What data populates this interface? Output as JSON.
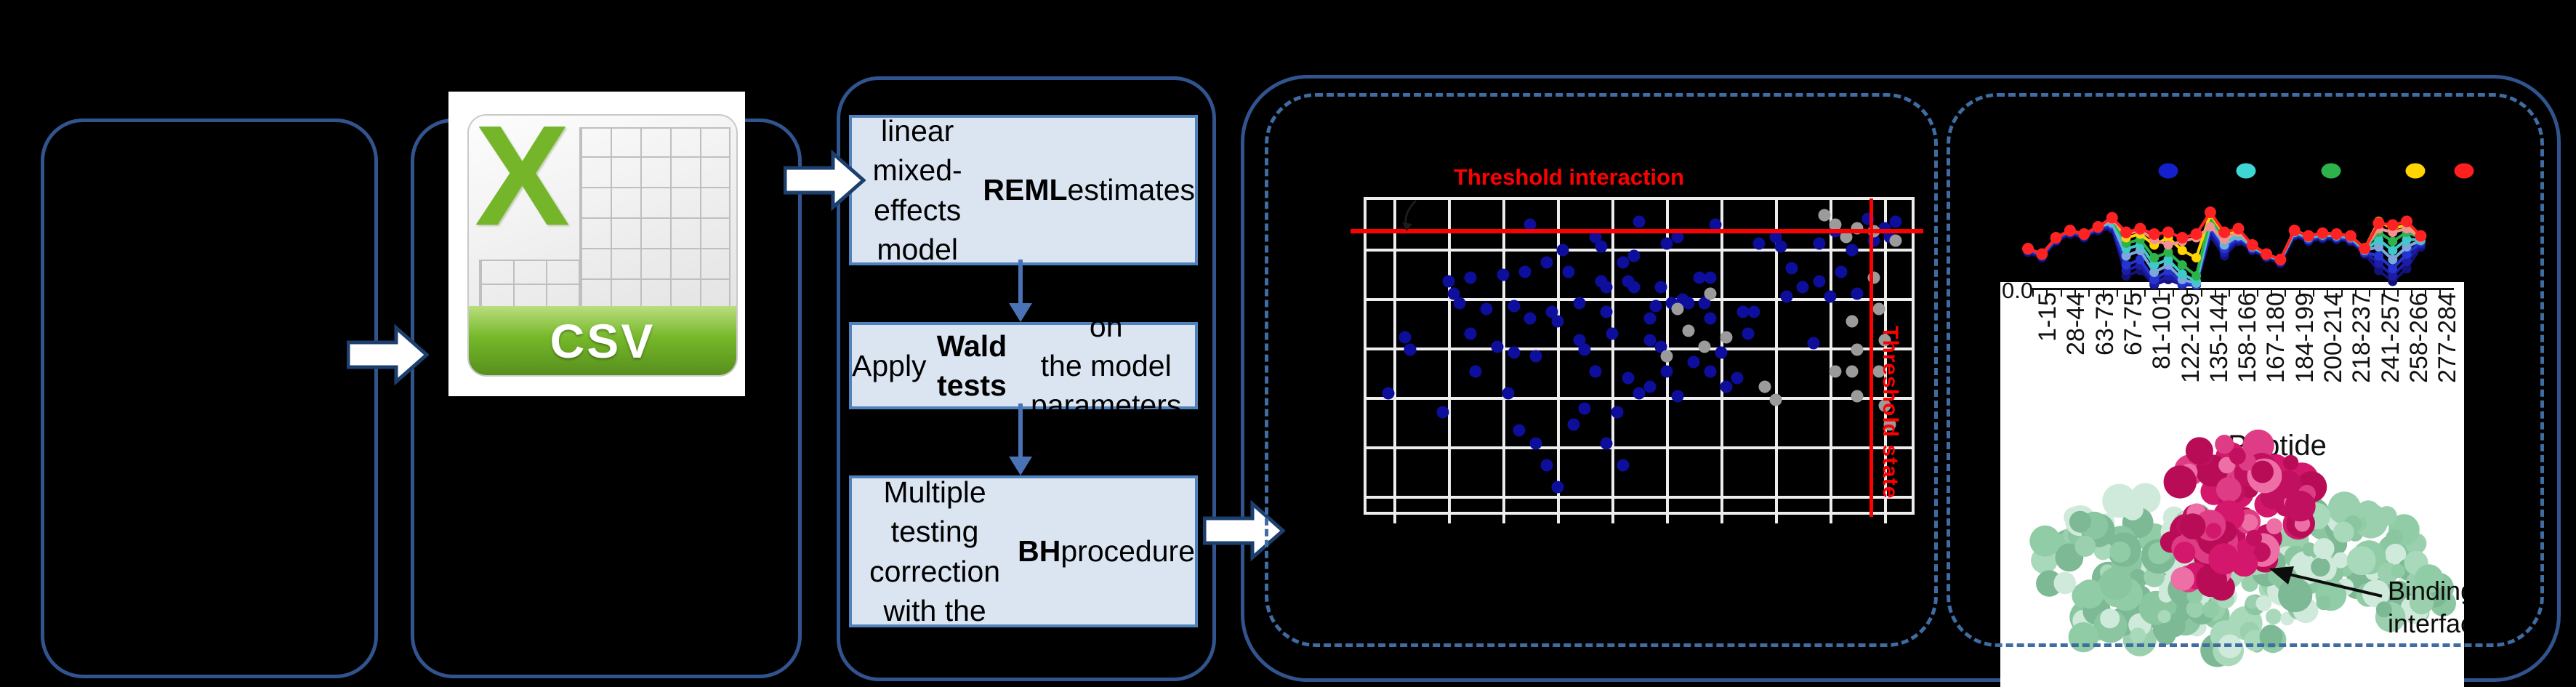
{
  "figure": {
    "csv": {
      "x_letter": "X",
      "banner_label": "CSV"
    },
    "steps": [
      {
        "segments": [
          {
            "text": "Fit a linear mixed-\neffects model with\n",
            "bold": false
          },
          {
            "text": "REML",
            "bold": true
          },
          {
            "text": " estimates",
            "bold": false
          }
        ]
      },
      {
        "segments": [
          {
            "text": "Apply ",
            "bold": false
          },
          {
            "text": "Wald tests",
            "bold": true
          },
          {
            "text": " on\nthe model parameters",
            "bold": false
          }
        ]
      },
      {
        "segments": [
          {
            "text": "Multiple testing\ncorrection\nwith the ",
            "bold": false
          },
          {
            "text": "BH",
            "bold": true
          },
          {
            "text": " procedure",
            "bold": false
          }
        ]
      }
    ]
  },
  "chart_data": [
    {
      "type": "scatter",
      "title": "Threshold interaction",
      "y2label": "Threshold state",
      "grid_on": true,
      "threshold_interaction_frac": 0.1,
      "threshold_state_frac": 0.925,
      "grid_x": [
        0.052,
        0.152,
        0.252,
        0.352,
        0.452,
        0.552,
        0.652,
        0.752,
        0.852,
        0.952
      ],
      "grid_y": [
        0.161,
        0.319,
        0.478,
        0.636,
        0.795,
        0.953
      ],
      "series": [
        {
          "name": "blue_points",
          "color": "#0e0e9d",
          "points": [
            [
              0.3,
              0.08
            ],
            [
              0.42,
              0.12
            ],
            [
              0.5,
              0.07
            ],
            [
              0.57,
              0.12
            ],
            [
              0.64,
              0.08
            ],
            [
              0.72,
              0.14
            ],
            [
              0.75,
              0.12
            ],
            [
              0.15,
              0.26
            ],
            [
              0.16,
              0.3
            ],
            [
              0.17,
              0.33
            ],
            [
              0.19,
              0.25
            ],
            [
              0.19,
              0.43
            ],
            [
              0.2,
              0.55
            ],
            [
              0.25,
              0.24
            ],
            [
              0.26,
              0.62
            ],
            [
              0.27,
              0.34
            ],
            [
              0.27,
              0.49
            ],
            [
              0.28,
              0.74
            ],
            [
              0.29,
              0.23
            ],
            [
              0.3,
              0.38
            ],
            [
              0.31,
              0.5
            ],
            [
              0.31,
              0.78
            ],
            [
              0.33,
              0.2
            ],
            [
              0.33,
              0.85
            ],
            [
              0.34,
              0.36
            ],
            [
              0.35,
              0.39
            ],
            [
              0.35,
              0.92
            ],
            [
              0.36,
              0.16
            ],
            [
              0.37,
              0.23
            ],
            [
              0.38,
              0.72
            ],
            [
              0.39,
              0.33
            ],
            [
              0.39,
              0.45
            ],
            [
              0.4,
              0.48
            ],
            [
              0.4,
              0.67
            ],
            [
              0.42,
              0.55
            ],
            [
              0.43,
              0.15
            ],
            [
              0.43,
              0.26
            ],
            [
              0.44,
              0.28
            ],
            [
              0.44,
              0.36
            ],
            [
              0.44,
              0.78
            ],
            [
              0.45,
              0.43
            ],
            [
              0.46,
              0.68
            ],
            [
              0.47,
              0.2
            ],
            [
              0.47,
              0.85
            ],
            [
              0.48,
              0.26
            ],
            [
              0.48,
              0.57
            ],
            [
              0.49,
              0.18
            ],
            [
              0.49,
              0.28
            ],
            [
              0.5,
              0.62
            ],
            [
              0.52,
              0.38
            ],
            [
              0.52,
              0.45
            ],
            [
              0.52,
              0.6
            ],
            [
              0.53,
              0.34
            ],
            [
              0.54,
              0.28
            ],
            [
              0.54,
              0.47
            ],
            [
              0.55,
              0.14
            ],
            [
              0.55,
              0.55
            ],
            [
              0.56,
              0.33
            ],
            [
              0.57,
              0.63
            ],
            [
              0.58,
              0.32
            ],
            [
              0.59,
              0.33
            ],
            [
              0.6,
              0.52
            ],
            [
              0.61,
              0.25
            ],
            [
              0.62,
              0.33
            ],
            [
              0.63,
              0.25
            ],
            [
              0.63,
              0.38
            ],
            [
              0.63,
              0.55
            ],
            [
              0.65,
              0.49
            ],
            [
              0.66,
              0.6
            ],
            [
              0.68,
              0.57
            ],
            [
              0.69,
              0.36
            ],
            [
              0.7,
              0.43
            ],
            [
              0.71,
              0.36
            ],
            [
              0.76,
              0.15
            ],
            [
              0.77,
              0.31
            ],
            [
              0.78,
              0.22
            ],
            [
              0.8,
              0.28
            ],
            [
              0.82,
              0.46
            ],
            [
              0.83,
              0.14
            ],
            [
              0.83,
              0.26
            ],
            [
              0.85,
              0.31
            ],
            [
              0.86,
              0.1
            ],
            [
              0.87,
              0.23
            ],
            [
              0.89,
              0.16
            ],
            [
              0.9,
              0.3
            ],
            [
              0.92,
              0.06
            ],
            [
              0.93,
              0.13
            ],
            [
              0.95,
              0.09
            ],
            [
              0.96,
              0.12
            ],
            [
              0.97,
              0.07
            ],
            [
              0.04,
              0.62
            ],
            [
              0.07,
              0.44
            ],
            [
              0.08,
              0.48
            ],
            [
              0.14,
              0.68
            ],
            [
              0.22,
              0.35
            ],
            [
              0.24,
              0.47
            ]
          ]
        },
        {
          "name": "gray_points",
          "color": "#9b9b9b",
          "points": [
            [
              0.84,
              0.05
            ],
            [
              0.86,
              0.08
            ],
            [
              0.88,
              0.12
            ],
            [
              0.9,
              0.09
            ],
            [
              0.93,
              0.1
            ],
            [
              0.97,
              0.13
            ],
            [
              0.57,
              0.35
            ],
            [
              0.59,
              0.42
            ],
            [
              0.62,
              0.47
            ],
            [
              0.66,
              0.44
            ],
            [
              0.55,
              0.5
            ],
            [
              0.63,
              0.3
            ],
            [
              0.73,
              0.6
            ],
            [
              0.75,
              0.64
            ],
            [
              0.86,
              0.55
            ],
            [
              0.89,
              0.39
            ],
            [
              0.9,
              0.48
            ],
            [
              0.89,
              0.55
            ],
            [
              0.9,
              0.63
            ],
            [
              0.93,
              0.25
            ],
            [
              0.94,
              0.35
            ],
            [
              0.95,
              0.45
            ],
            [
              0.94,
              0.55
            ],
            [
              0.95,
              0.66
            ],
            [
              0.96,
              0.72
            ]
          ]
        }
      ]
    },
    {
      "type": "line",
      "xlabel": "Peptide",
      "y_tick_label": "0.0",
      "x_labels": [
        "1-15",
        "28-44",
        "63-73",
        "67-75",
        "81-101",
        "122-129",
        "135-144",
        "158-166",
        "167-180",
        "184-199",
        "200-214",
        "218-237",
        "241-257",
        "258-266",
        "277-284"
      ],
      "legend_position": "top",
      "legend_marker_colors": [
        "#1420cc",
        "#3fd6d6",
        "#2db34c",
        "#ffd400",
        "#ff1f1f"
      ],
      "legend_x_centers": [
        2983,
        3090,
        3207,
        3323,
        3390
      ],
      "series": [
        {
          "name": "navy-dark",
          "color": "#12127a",
          "values": [
            0.36,
            0.3,
            0.48,
            0.56,
            0.52,
            0.6,
            0.62,
            0.1,
            0.16,
            0.0,
            0.06,
            0.0,
            0.0,
            0.54,
            0.32,
            0.48,
            0.38,
            0.3,
            0.24,
            0.54,
            0.48,
            0.51,
            0.5,
            0.48,
            0.34,
            0.16,
            0.04,
            0.18,
            0.42
          ]
        },
        {
          "name": "navy",
          "color": "#1c1ca6",
          "values": [
            0.38,
            0.32,
            0.5,
            0.58,
            0.54,
            0.62,
            0.64,
            0.16,
            0.22,
            0.02,
            0.1,
            0.0,
            0.0,
            0.58,
            0.36,
            0.5,
            0.4,
            0.32,
            0.26,
            0.56,
            0.5,
            0.53,
            0.52,
            0.5,
            0.36,
            0.24,
            0.1,
            0.26,
            0.45
          ]
        },
        {
          "name": "blue",
          "color": "#2334d0",
          "values": [
            0.38,
            0.32,
            0.5,
            0.58,
            0.54,
            0.62,
            0.66,
            0.22,
            0.28,
            0.06,
            0.16,
            0.02,
            0.0,
            0.62,
            0.4,
            0.52,
            0.4,
            0.32,
            0.26,
            0.56,
            0.5,
            0.53,
            0.52,
            0.5,
            0.36,
            0.32,
            0.18,
            0.34,
            0.47
          ]
        },
        {
          "name": "steel-blue",
          "color": "#7ba7dc",
          "values": [
            0.4,
            0.34,
            0.52,
            0.6,
            0.56,
            0.64,
            0.68,
            0.32,
            0.38,
            0.14,
            0.22,
            0.06,
            0.02,
            0.66,
            0.44,
            0.54,
            0.42,
            0.33,
            0.27,
            0.58,
            0.52,
            0.55,
            0.54,
            0.52,
            0.38,
            0.42,
            0.28,
            0.42,
            0.49
          ]
        },
        {
          "name": "teal",
          "color": "#3fc9c9",
          "values": [
            0.4,
            0.34,
            0.52,
            0.6,
            0.56,
            0.64,
            0.7,
            0.4,
            0.44,
            0.22,
            0.28,
            0.12,
            0.04,
            0.7,
            0.48,
            0.56,
            0.42,
            0.33,
            0.27,
            0.58,
            0.52,
            0.55,
            0.54,
            0.52,
            0.38,
            0.5,
            0.38,
            0.5,
            0.5
          ]
        },
        {
          "name": "green",
          "color": "#2cb44b",
          "values": [
            0.4,
            0.34,
            0.52,
            0.6,
            0.56,
            0.64,
            0.72,
            0.46,
            0.5,
            0.3,
            0.36,
            0.22,
            0.1,
            0.74,
            0.52,
            0.58,
            0.44,
            0.34,
            0.28,
            0.6,
            0.54,
            0.57,
            0.56,
            0.54,
            0.4,
            0.58,
            0.48,
            0.58,
            0.52
          ]
        },
        {
          "name": "yellow",
          "color": "#ffd400",
          "values": [
            0.4,
            0.34,
            0.52,
            0.6,
            0.56,
            0.64,
            0.74,
            0.52,
            0.56,
            0.44,
            0.52,
            0.38,
            0.3,
            0.78,
            0.56,
            0.6,
            0.44,
            0.34,
            0.28,
            0.6,
            0.54,
            0.57,
            0.56,
            0.54,
            0.4,
            0.7,
            0.62,
            0.66,
            0.53
          ]
        },
        {
          "name": "salmon",
          "color": "#f29292",
          "values": [
            0.4,
            0.34,
            0.52,
            0.6,
            0.56,
            0.64,
            0.72,
            0.56,
            0.6,
            0.5,
            0.44,
            0.48,
            0.52,
            0.64,
            0.5,
            0.58,
            0.44,
            0.34,
            0.28,
            0.6,
            0.54,
            0.57,
            0.56,
            0.54,
            0.4,
            0.62,
            0.58,
            0.62,
            0.52
          ]
        },
        {
          "name": "red",
          "color": "#ff2222",
          "values": [
            0.4,
            0.34,
            0.52,
            0.6,
            0.56,
            0.64,
            0.74,
            0.58,
            0.62,
            0.56,
            0.58,
            0.52,
            0.56,
            0.8,
            0.58,
            0.62,
            0.44,
            0.34,
            0.28,
            0.6,
            0.54,
            0.57,
            0.56,
            0.54,
            0.4,
            0.68,
            0.66,
            0.7,
            0.54
          ]
        }
      ]
    }
  ],
  "protein": {
    "xlabel": "Peptide",
    "binding_label": "Binding\ninterface"
  }
}
